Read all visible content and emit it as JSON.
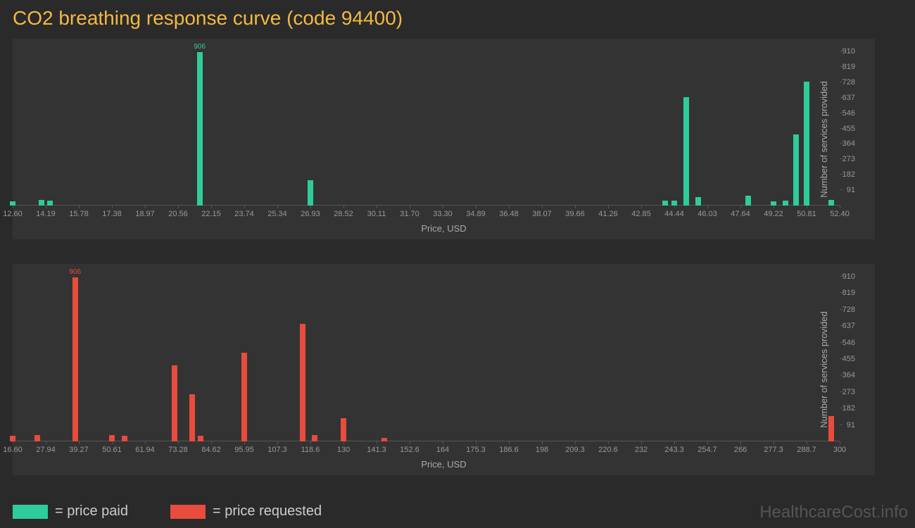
{
  "title": "CO2 breathing response curve (code 94400)",
  "watermark": "HealthcareCost.info",
  "legend": {
    "paid": {
      "color": "#2ecc9a",
      "label": "= price paid"
    },
    "requested": {
      "color": "#e74c3c",
      "label": "= price requested"
    }
  },
  "chart_top": {
    "type": "bar",
    "background": "#333333",
    "bar_color": "#2ecc9a",
    "x_label": "Price, USD",
    "y_label": "Number of services provided",
    "x_min": 12.6,
    "x_max": 52.4,
    "x_ticks": [
      "12.60",
      "14.19",
      "15.78",
      "17.38",
      "18.97",
      "20.56",
      "22.15",
      "23.74",
      "25.34",
      "26.93",
      "28.52",
      "30.11",
      "31.70",
      "33.30",
      "34.89",
      "36.48",
      "38.07",
      "39.66",
      "41.26",
      "42.85",
      "44.44",
      "46.03",
      "47.64",
      "49.22",
      "50.81",
      "52.40"
    ],
    "y_min": 0,
    "y_max": 910,
    "y_ticks": [
      91,
      182,
      273,
      364,
      455,
      546,
      637,
      728,
      819,
      910
    ],
    "max_bar_label": "906",
    "bars": [
      {
        "x": 12.6,
        "y": 25
      },
      {
        "x": 14.0,
        "y": 35
      },
      {
        "x": 14.4,
        "y": 30
      },
      {
        "x": 21.6,
        "y": 906,
        "label": "906"
      },
      {
        "x": 26.93,
        "y": 150
      },
      {
        "x": 44.0,
        "y": 30
      },
      {
        "x": 44.44,
        "y": 30
      },
      {
        "x": 45.0,
        "y": 640
      },
      {
        "x": 45.6,
        "y": 50
      },
      {
        "x": 48.0,
        "y": 60
      },
      {
        "x": 49.22,
        "y": 25
      },
      {
        "x": 49.8,
        "y": 30
      },
      {
        "x": 50.3,
        "y": 420
      },
      {
        "x": 50.81,
        "y": 730
      },
      {
        "x": 52.0,
        "y": 35
      }
    ]
  },
  "chart_bottom": {
    "type": "bar",
    "background": "#333333",
    "bar_color": "#e74c3c",
    "x_label": "Price, USD",
    "y_label": "Number of services provided",
    "x_min": 16.6,
    "x_max": 300,
    "x_ticks": [
      "16.60",
      "27.94",
      "39.27",
      "50.61",
      "61.94",
      "73.28",
      "84.62",
      "95.95",
      "107.3",
      "118.6",
      "130",
      "141.3",
      "152.6",
      "164",
      "175.3",
      "186.6",
      "198",
      "209.3",
      "220.6",
      "232",
      "243.3",
      "254.7",
      "266",
      "277.3",
      "288.7",
      "300"
    ],
    "y_min": 0,
    "y_max": 910,
    "y_ticks": [
      91,
      182,
      273,
      364,
      455,
      546,
      637,
      728,
      819,
      910
    ],
    "max_bar_label": "906",
    "bars": [
      {
        "x": 16.6,
        "y": 30
      },
      {
        "x": 25.0,
        "y": 35
      },
      {
        "x": 38.0,
        "y": 906,
        "label": "906"
      },
      {
        "x": 50.61,
        "y": 35
      },
      {
        "x": 55.0,
        "y": 30
      },
      {
        "x": 72.0,
        "y": 420
      },
      {
        "x": 78.0,
        "y": 260
      },
      {
        "x": 81.0,
        "y": 30
      },
      {
        "x": 95.95,
        "y": 490
      },
      {
        "x": 116.0,
        "y": 650
      },
      {
        "x": 120.0,
        "y": 35
      },
      {
        "x": 130.0,
        "y": 130
      },
      {
        "x": 144.0,
        "y": 20
      },
      {
        "x": 297.0,
        "y": 140
      }
    ]
  }
}
